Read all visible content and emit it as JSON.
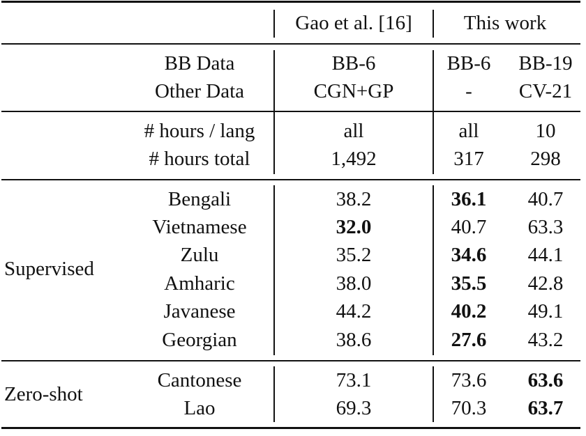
{
  "header": {
    "group_gao": "Gao et al. [16]",
    "group_this": "This work"
  },
  "meta_rows": [
    {
      "label": "BB Data",
      "gao": "BB-6",
      "this1": "BB-6",
      "this2": "BB-19"
    },
    {
      "label": "Other Data",
      "gao": "CGN+GP",
      "this1": "-",
      "this2": "CV-21"
    },
    {
      "label": "# hours / lang",
      "gao": "all",
      "this1": "all",
      "this2": "10"
    },
    {
      "label": "# hours total",
      "gao": "1,492",
      "this1": "317",
      "this2": "298"
    }
  ],
  "groups": {
    "supervised": "Supervised",
    "zeroshot": "Zero-shot"
  },
  "rows": [
    {
      "lang": "Bengali",
      "gao": "38.2",
      "this1": "36.1",
      "this2": "40.7",
      "best": "this1"
    },
    {
      "lang": "Vietnamese",
      "gao": "32.0",
      "this1": "40.7",
      "this2": "63.3",
      "best": "gao"
    },
    {
      "lang": "Zulu",
      "gao": "35.2",
      "this1": "34.6",
      "this2": "44.1",
      "best": "this1"
    },
    {
      "lang": "Amharic",
      "gao": "38.0",
      "this1": "35.5",
      "this2": "42.8",
      "best": "this1"
    },
    {
      "lang": "Javanese",
      "gao": "44.2",
      "this1": "40.2",
      "this2": "49.1",
      "best": "this1"
    },
    {
      "lang": "Georgian",
      "gao": "38.6",
      "this1": "27.6",
      "this2": "43.2",
      "best": "this1"
    },
    {
      "lang": "Cantonese",
      "gao": "73.1",
      "this1": "73.6",
      "this2": "63.6",
      "best": "this2"
    },
    {
      "lang": "Lao",
      "gao": "69.3",
      "this1": "70.3",
      "this2": "63.7",
      "best": "this2"
    }
  ]
}
